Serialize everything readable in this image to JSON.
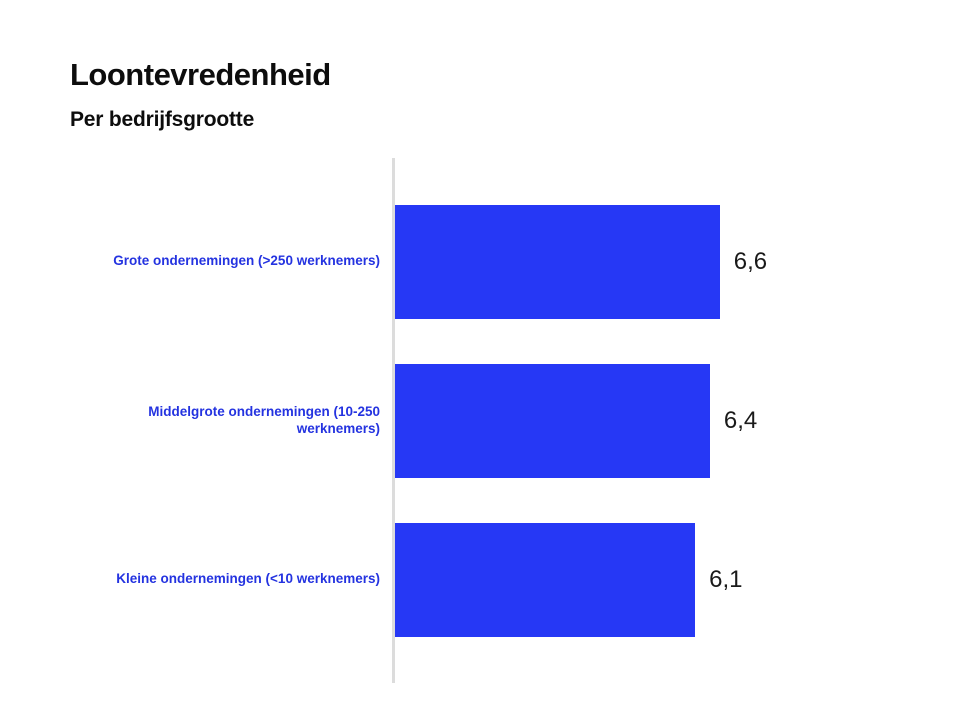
{
  "page": {
    "background": "#ffffff"
  },
  "header": {
    "title": "Loontevredenheid",
    "subtitle": "Per bedrijfsgrootte"
  },
  "chart_data": {
    "type": "bar",
    "orientation": "horizontal",
    "title": "Loontevredenheid",
    "subtitle": "Per bedrijfsgrootte",
    "categories": [
      "Grote ondernemingen (>250 werknemers)",
      "Middelgrote ondernemingen (10-250 werknemers)",
      "Kleine ondernemingen (<10 werknemers)"
    ],
    "values": [
      6.6,
      6.4,
      6.1
    ],
    "value_labels": [
      "6,6",
      "6,4",
      "6,1"
    ],
    "xlabel": "",
    "ylabel": "",
    "xlim": [
      0,
      10
    ],
    "grid": false,
    "legend_position": "none",
    "bar_color": "#2638f5",
    "category_label_color": "#2433e0",
    "value_label_color": "#1a1a1a",
    "axis_line_color": "#dcdcdc"
  }
}
